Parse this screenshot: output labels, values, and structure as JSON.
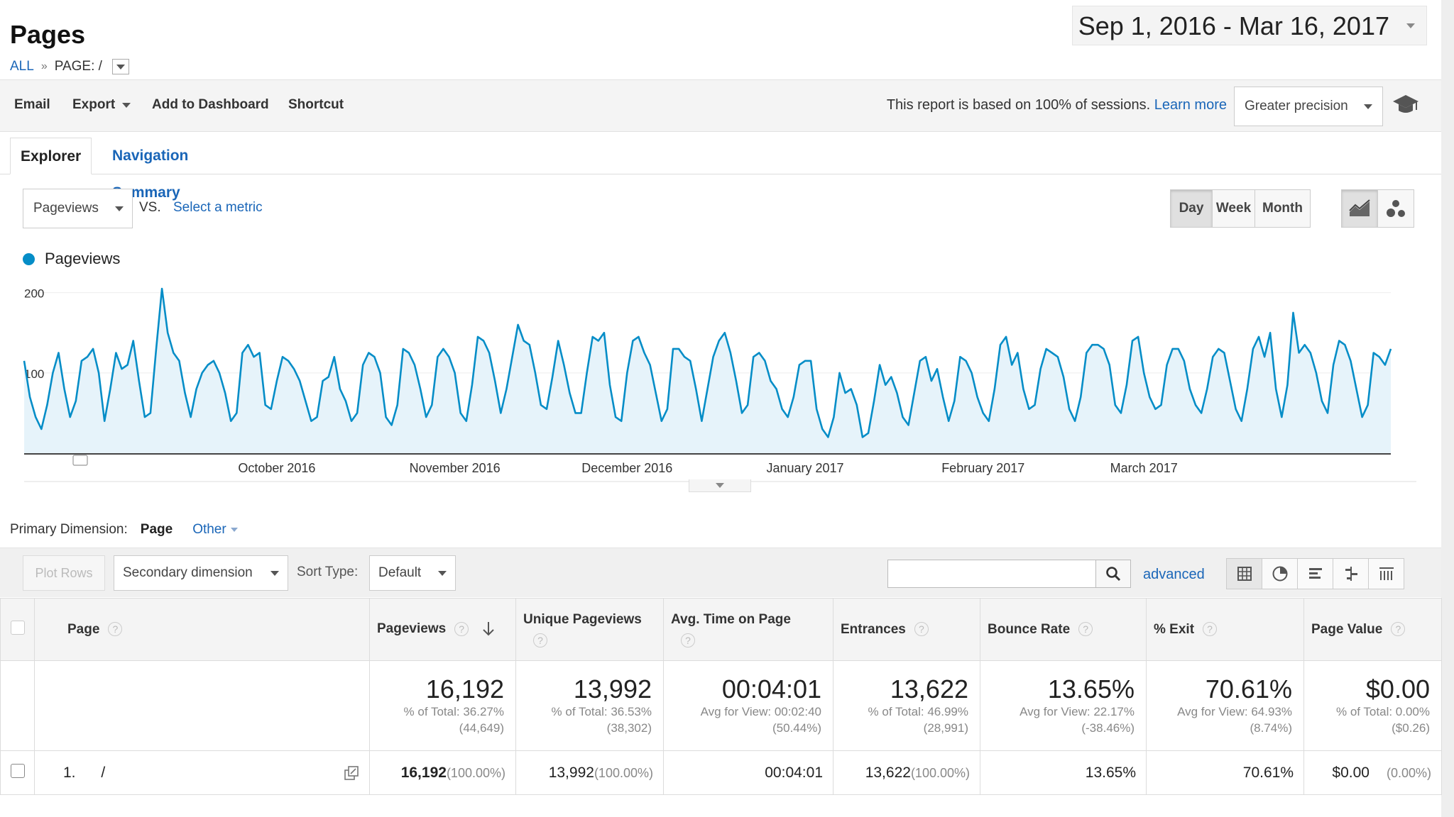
{
  "header": {
    "title": "Pages",
    "breadcrumb_all": "ALL",
    "breadcrumb_sep": "»",
    "breadcrumb_page": "PAGE: /",
    "date_range": "Sep 1, 2016 - Mar 16, 2017"
  },
  "toolbar": {
    "email": "Email",
    "export": "Export",
    "add_dashboard": "Add to Dashboard",
    "shortcut": "Shortcut",
    "report_note": "This report is based on 100% of sessions.",
    "learn_more": "Learn more",
    "precision": "Greater precision"
  },
  "tabs": {
    "explorer": "Explorer",
    "nav_summary": "Navigation Summary"
  },
  "metric": {
    "primary": "Pageviews",
    "vs": "VS.",
    "select": "Select a metric"
  },
  "granularity": {
    "day": "Day",
    "week": "Week",
    "month": "Month"
  },
  "chart_data": {
    "type": "line",
    "series": [
      {
        "name": "Pageviews",
        "color": "#058dc7",
        "values": [
          115,
          70,
          45,
          30,
          60,
          100,
          125,
          80,
          45,
          65,
          115,
          120,
          130,
          100,
          40,
          80,
          125,
          105,
          110,
          140,
          90,
          45,
          50,
          130,
          205,
          150,
          125,
          115,
          75,
          45,
          80,
          100,
          110,
          115,
          100,
          75,
          40,
          50,
          125,
          135,
          120,
          125,
          60,
          55,
          90,
          120,
          115,
          105,
          90,
          65,
          40,
          45,
          90,
          95,
          120,
          80,
          65,
          40,
          50,
          110,
          125,
          120,
          100,
          45,
          35,
          60,
          130,
          125,
          110,
          80,
          45,
          60,
          120,
          130,
          120,
          100,
          50,
          40,
          85,
          145,
          140,
          125,
          90,
          50,
          80,
          120,
          160,
          140,
          135,
          100,
          60,
          55,
          95,
          140,
          110,
          75,
          50,
          50,
          100,
          145,
          140,
          150,
          85,
          45,
          40,
          100,
          140,
          145,
          125,
          110,
          75,
          40,
          55,
          130,
          130,
          120,
          115,
          80,
          40,
          80,
          120,
          140,
          150,
          125,
          90,
          50,
          60,
          120,
          125,
          115,
          90,
          80,
          55,
          45,
          70,
          110,
          115,
          115,
          55,
          30,
          20,
          45,
          100,
          75,
          80,
          60,
          20,
          25,
          65,
          110,
          85,
          95,
          75,
          45,
          35,
          75,
          115,
          120,
          90,
          105,
          70,
          40,
          65,
          120,
          115,
          100,
          70,
          50,
          40,
          80,
          135,
          145,
          110,
          125,
          80,
          55,
          60,
          105,
          130,
          125,
          120,
          95,
          55,
          40,
          70,
          125,
          135,
          135,
          130,
          110,
          60,
          50,
          85,
          140,
          145,
          100,
          70,
          55,
          60,
          110,
          130,
          130,
          115,
          80,
          60,
          50,
          80,
          120,
          130,
          125,
          90,
          55,
          40,
          80,
          130,
          145,
          120,
          150,
          80,
          45,
          85,
          175,
          125,
          135,
          125,
          100,
          65,
          50,
          110,
          140,
          135,
          115,
          80,
          45,
          60,
          125,
          120,
          110,
          130
        ],
        "anchor_values": [
          125,
          45,
          130,
          40,
          130,
          210,
          115,
          45,
          45,
          130,
          40,
          130,
          145,
          60,
          60,
          140,
          50,
          100,
          115,
          45,
          90,
          135,
          50,
          150,
          50,
          150,
          125,
          60,
          150,
          145,
          40,
          140,
          50,
          160,
          40,
          130,
          160,
          100,
          55,
          125,
          155,
          45,
          125,
          140,
          20,
          105,
          80,
          40,
          125,
          140,
          75,
          125,
          145,
          125,
          55,
          120,
          140,
          125,
          140,
          45,
          150,
          165,
          110,
          50,
          125
        ],
        "anchor_months_x": [
          "Oct",
          "Nov",
          "Dec",
          "Jan",
          "Feb",
          "Mar"
        ]
      }
    ],
    "x_tick_labels": [
      "October 2016",
      "November 2016",
      "December 2016",
      "January 2017",
      "February 2017",
      "March 2017"
    ],
    "y_tick_labels": [
      "200",
      "100"
    ],
    "ylim": [
      0,
      220
    ]
  },
  "dimension": {
    "label": "Primary Dimension:",
    "selected": "Page",
    "other": "Other"
  },
  "filters": {
    "plot_rows": "Plot Rows",
    "secondary": "Secondary dimension",
    "sort_label": "Sort Type:",
    "sort_value": "Default",
    "advanced": "advanced"
  },
  "table": {
    "headers": {
      "page": "Page",
      "pageviews": "Pageviews",
      "unique": "Unique Pageviews",
      "avg_time": "Avg. Time on Page",
      "entrances": "Entrances",
      "bounce": "Bounce Rate",
      "exit": "% Exit",
      "value": "Page Value"
    },
    "totals": {
      "pageviews": "16,192",
      "pageviews_sub1": "% of Total: 36.27%",
      "pageviews_sub2": "(44,649)",
      "unique": "13,992",
      "unique_sub1": "% of Total: 36.53%",
      "unique_sub2": "(38,302)",
      "avg_time": "00:04:01",
      "avg_time_sub1": "Avg for View: 00:02:40",
      "avg_time_sub2": "(50.44%)",
      "entrances": "13,622",
      "entrances_sub1": "% of Total: 46.99%",
      "entrances_sub2": "(28,991)",
      "bounce": "13.65%",
      "bounce_sub1": "Avg for View: 22.17%",
      "bounce_sub2": "(-38.46%)",
      "exit": "70.61%",
      "exit_sub1": "Avg for View: 64.93%",
      "exit_sub2": "(8.74%)",
      "value": "$0.00",
      "value_sub1": "% of Total: 0.00%",
      "value_sub2": "($0.26)"
    },
    "rows": [
      {
        "index": "1.",
        "page": "/",
        "pageviews": "16,192",
        "pageviews_pct": "(100.00%)",
        "unique": "13,992",
        "unique_pct": "(100.00%)",
        "avg_time": "00:04:01",
        "entrances": "13,622",
        "entrances_pct": "(100.00%)",
        "bounce": "13.65%",
        "exit": "70.61%",
        "value": "$0.00",
        "value_pct": "(0.00%)"
      }
    ]
  }
}
